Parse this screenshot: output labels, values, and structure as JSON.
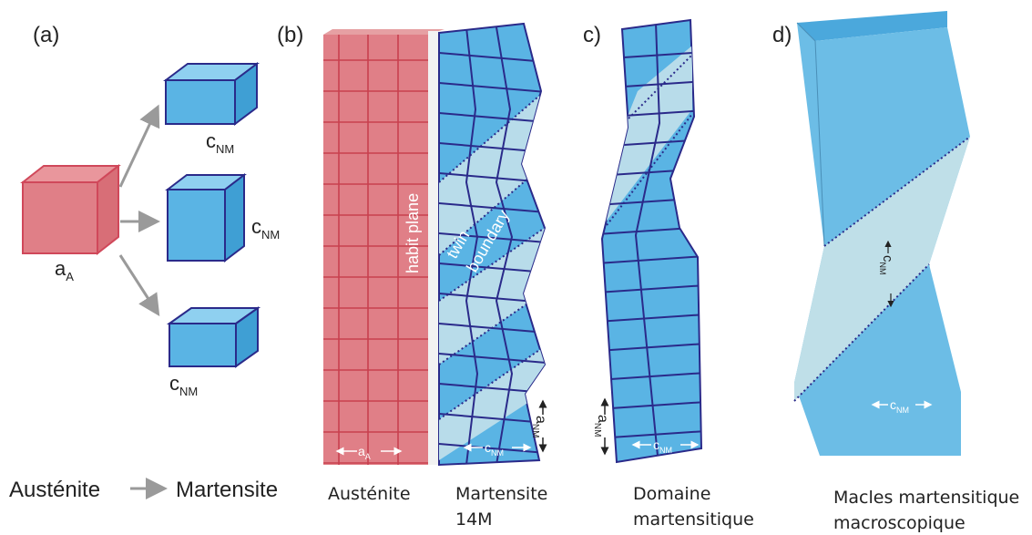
{
  "panels": {
    "a": {
      "label": "(a)",
      "austenite_cell": {
        "symbol": "a",
        "subscript": "A"
      },
      "martensite_cells": [
        {
          "symbol": "c",
          "subscript": "NM"
        },
        {
          "symbol": "c",
          "subscript": "NM"
        },
        {
          "symbol": "c",
          "subscript": "NM"
        }
      ],
      "caption_from": "Austénite",
      "caption_to": "Martensite"
    },
    "b": {
      "label": "(b)",
      "habit_plane": "habit plane",
      "twin_boundary": [
        "twin",
        "boundary"
      ],
      "austenite_param": {
        "symbol": "a",
        "subscript": "A"
      },
      "martensite_c": {
        "symbol": "c",
        "subscript": "NM"
      },
      "martensite_a": {
        "symbol": "a",
        "subscript": "NM"
      },
      "caption_austenite": "Austénite",
      "caption_martensite": [
        "Martensite",
        "14M"
      ]
    },
    "c": {
      "label": "c)",
      "param_a": {
        "symbol": "a",
        "subscript": "NM"
      },
      "param_c": {
        "symbol": "c",
        "subscript": "NM"
      },
      "caption": [
        "Domaine",
        "martensitique"
      ]
    },
    "d": {
      "label": "d)",
      "param_band": {
        "symbol": "c",
        "subscript": "NM"
      },
      "param_bottom": {
        "symbol": "c",
        "subscript": "NM"
      },
      "caption": [
        "Macles martensitique",
        "macroscopique"
      ]
    }
  }
}
